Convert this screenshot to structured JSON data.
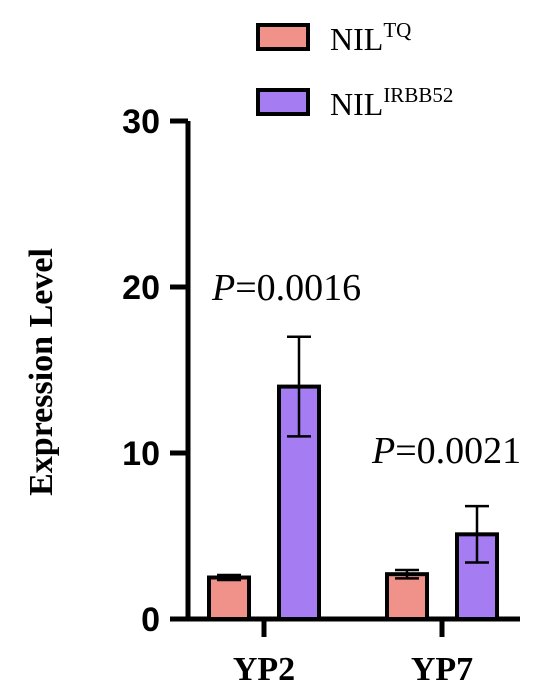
{
  "chart_data": {
    "type": "bar",
    "ylabel": "Expression Level",
    "xlabel": "",
    "ylim": [
      0,
      30
    ],
    "yticks": [
      0,
      10,
      20,
      30
    ],
    "categories": [
      "YP2",
      "YP7"
    ],
    "series": [
      {
        "name_base": "NIL",
        "name_sup": "TQ",
        "color": "#f0928a",
        "values": [
          2.5,
          2.7
        ],
        "errors": [
          0.15,
          0.25
        ]
      },
      {
        "name_base": "NIL",
        "name_sup": "IRBB52",
        "color": "#a57cf2",
        "values": [
          14.0,
          5.1
        ],
        "errors": [
          3.0,
          1.7
        ]
      }
    ],
    "annotations": [
      {
        "category": "YP2",
        "p_label": "P",
        "text": "=0.0016"
      },
      {
        "category": "YP7",
        "p_label": "P",
        "text": "=0.0021"
      }
    ],
    "legend_position": "top"
  }
}
